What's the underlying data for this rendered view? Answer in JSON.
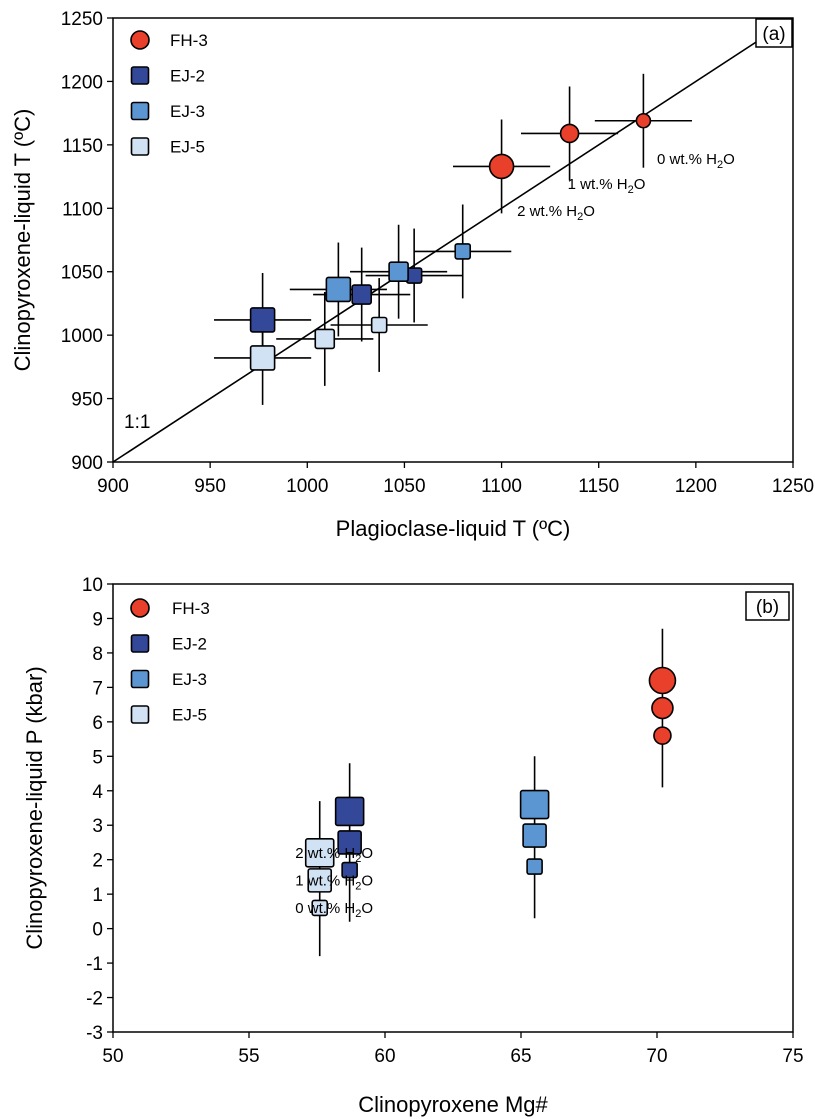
{
  "chart_data": [
    {
      "type": "scatter",
      "panel_label": "(a)",
      "xlabel": "Plagioclase-liquid T (ºC)",
      "ylabel": "Clinopyroxene-liquid T (ºC)",
      "xlim": [
        900,
        1250
      ],
      "ylim": [
        900,
        1250
      ],
      "xticks": [
        900,
        950,
        1000,
        1050,
        1100,
        1150,
        1200,
        1250
      ],
      "yticks": [
        900,
        950,
        1000,
        1050,
        1100,
        1150,
        1200,
        1250
      ],
      "grid": false,
      "legend_position": "top-left",
      "reference_line": {
        "label": "1:1",
        "from": [
          900,
          900
        ],
        "to": [
          1250,
          1250
        ]
      },
      "series": [
        {
          "name": "FH-3",
          "marker": "circle",
          "color": "#e8402a",
          "points": [
            {
              "water": 2,
              "x": 1100,
              "y": 1133,
              "xerr": 25,
              "yerr": 37
            },
            {
              "water": 1,
              "x": 1135,
              "y": 1159,
              "xerr": 25,
              "yerr": 37
            },
            {
              "water": 0,
              "x": 1173,
              "y": 1169,
              "xerr": 25,
              "yerr": 37
            }
          ]
        },
        {
          "name": "EJ-2",
          "marker": "square",
          "color": "#34489a",
          "points": [
            {
              "water": 2,
              "x": 977,
              "y": 1012,
              "xerr": 25,
              "yerr": 37
            },
            {
              "water": 1,
              "x": 1028,
              "y": 1032,
              "xerr": 25,
              "yerr": 37
            },
            {
              "water": 0,
              "x": 1055,
              "y": 1047,
              "xerr": 25,
              "yerr": 37
            }
          ]
        },
        {
          "name": "EJ-3",
          "marker": "square",
          "color": "#5b96d2",
          "points": [
            {
              "water": 2,
              "x": 1016,
              "y": 1036,
              "xerr": 25,
              "yerr": 37
            },
            {
              "water": 1,
              "x": 1047,
              "y": 1050,
              "xerr": 25,
              "yerr": 37
            },
            {
              "water": 0,
              "x": 1080,
              "y": 1066,
              "xerr": 25,
              "yerr": 37
            }
          ]
        },
        {
          "name": "EJ-5",
          "marker": "square",
          "color": "#d1e2f4",
          "points": [
            {
              "water": 2,
              "x": 977,
              "y": 982,
              "xerr": 25,
              "yerr": 37
            },
            {
              "water": 1,
              "x": 1009,
              "y": 997,
              "xerr": 25,
              "yerr": 37
            },
            {
              "water": 0,
              "x": 1037,
              "y": 1008,
              "xerr": 25,
              "yerr": 37
            }
          ]
        }
      ],
      "annotations": [
        {
          "text": "0 wt.% H",
          "sub": "2",
          "tail": "O",
          "x": 1180,
          "y": 1139
        },
        {
          "text": "1 wt.% H",
          "sub": "2",
          "tail": "O",
          "x": 1134,
          "y": 1119
        },
        {
          "text": "2 wt.% H",
          "sub": "2",
          "tail": "O",
          "x": 1108,
          "y": 1098
        }
      ]
    },
    {
      "type": "scatter",
      "panel_label": "(b)",
      "xlabel": "Clinopyroxene Mg#",
      "ylabel": "Clinopyroxene-liquid P  (kbar)",
      "xlim": [
        50,
        75
      ],
      "ylim": [
        -3,
        10
      ],
      "xticks": [
        50,
        55,
        60,
        65,
        70,
        75
      ],
      "yticks": [
        -3,
        -2,
        -1,
        0,
        1,
        2,
        3,
        4,
        5,
        6,
        7,
        8,
        9,
        10
      ],
      "grid": false,
      "legend_position": "top-left",
      "series": [
        {
          "name": "FH-3",
          "marker": "circle",
          "color": "#e8402a",
          "points": [
            {
              "water": 2,
              "x": 70.2,
              "y": 7.2,
              "yerr_low": 3.1,
              "yerr_high": 1.5
            },
            {
              "water": 1,
              "x": 70.2,
              "y": 6.4
            },
            {
              "water": 0,
              "x": 70.2,
              "y": 5.6
            }
          ]
        },
        {
          "name": "EJ-2",
          "marker": "square",
          "color": "#34489a",
          "points": [
            {
              "water": 2,
              "x": 58.7,
              "y": 3.4,
              "yerr_low": 3.2,
              "yerr_high": 1.4
            },
            {
              "water": 1,
              "x": 58.7,
              "y": 2.5
            },
            {
              "water": 0,
              "x": 58.7,
              "y": 1.7
            }
          ]
        },
        {
          "name": "EJ-3",
          "marker": "square",
          "color": "#5b96d2",
          "points": [
            {
              "water": 2,
              "x": 65.5,
              "y": 3.6,
              "yerr_low": 3.3,
              "yerr_high": 1.4
            },
            {
              "water": 1,
              "x": 65.5,
              "y": 2.7
            },
            {
              "water": 0,
              "x": 65.5,
              "y": 1.8
            }
          ]
        },
        {
          "name": "EJ-5",
          "marker": "square",
          "color": "#d1e2f4",
          "points": [
            {
              "water": 2,
              "x": 57.6,
              "y": 2.2,
              "yerr_low": 3.0,
              "yerr_high": 1.5
            },
            {
              "water": 1,
              "x": 57.6,
              "y": 1.4
            },
            {
              "water": 0,
              "x": 57.6,
              "y": 0.6
            }
          ]
        }
      ],
      "annotations": [
        {
          "text": "2 wt.% H",
          "sub": "2",
          "tail": "O",
          "x": 56.7,
          "y": 2.2
        },
        {
          "text": "1 wt.% H",
          "sub": "2",
          "tail": "O",
          "x": 56.7,
          "y": 1.4
        },
        {
          "text": "0 wt.% H",
          "sub": "2",
          "tail": "O",
          "x": 56.7,
          "y": 0.6
        }
      ]
    }
  ]
}
